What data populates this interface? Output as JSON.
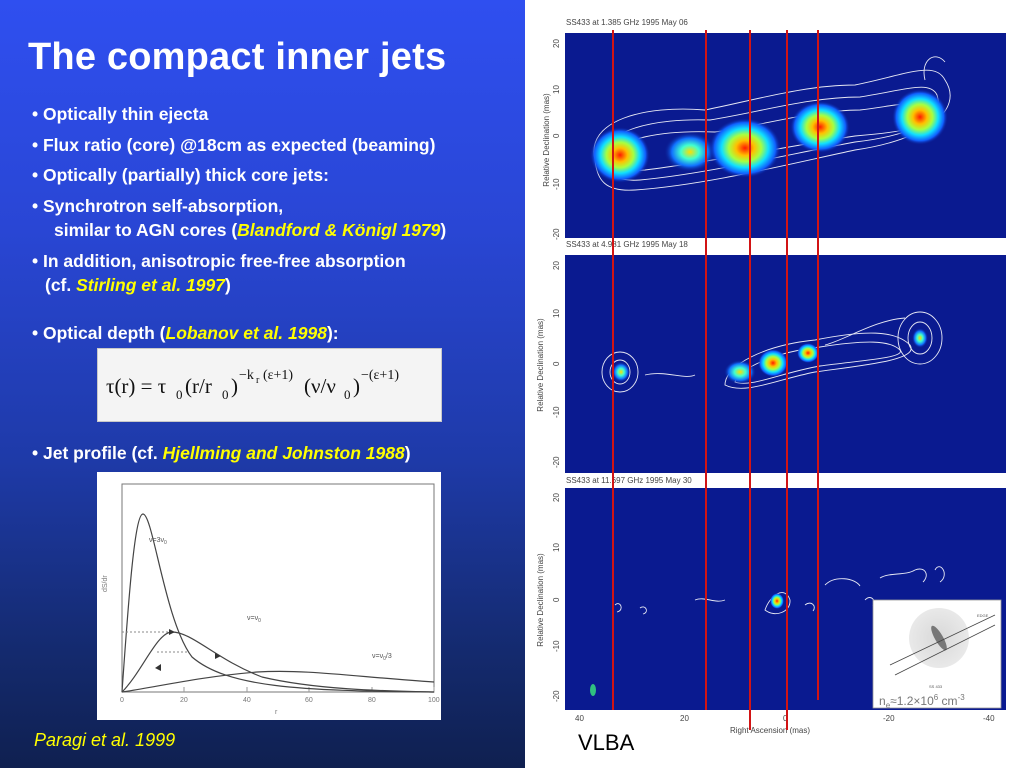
{
  "slide": {
    "title": "The compact inner jets",
    "bullets": {
      "b1": "• Optically thin ejecta",
      "b2": "• Flux ratio (core) @18cm as expected (beaming)",
      "b3": "• Optically (partially) thick core jets:",
      "b4": "• Synchrotron self-absorption,",
      "b5_pre": "similar to AGN cores (",
      "b5_ref": "Blandford & Königl 1979",
      "b5_post": ")",
      "b6": "• In addition, anisotropic free-free absorption",
      "b7_pre": "(cf. ",
      "b7_ref": "Stirling et al. 1997",
      "b7_post": ")",
      "b8_pre": "• Optical depth (",
      "b8_ref": "Lobanov et al. 1998",
      "b8_post": "):",
      "b9_pre": "• Jet profile (cf. ",
      "b9_ref": "Hjellming and Johnston 1988",
      "b9_post": ")"
    },
    "formula": {
      "tau_lhs": "τ(r) = τ",
      "sub0": "0",
      "r_part": "(r/r",
      "sub0b": "0",
      "close1": ")",
      "exp1": "−k",
      "exp1_sub": "r",
      "exp1_tail": "(ε+1)",
      "nu_part": "(ν/ν",
      "sub0c": "0",
      "close2": ")",
      "exp2": "−(ε+1)"
    },
    "plot": {
      "label_top": "ν=3ν",
      "label_top_sub": "0",
      "label_mid": "ν=ν",
      "label_mid_sub": "0",
      "label_right": "ν=ν",
      "label_right_sub": "0",
      "label_right_tail": "/3",
      "ylabel": "dS/dr",
      "xlabel": "r",
      "xticks": [
        "0",
        "20",
        "40",
        "60",
        "80",
        "100"
      ]
    },
    "credit": "Paragi et al. 1999",
    "vlba": "VLBA",
    "maps": {
      "m1_title": "SS433 at 1.385 GHz 1995 May 06",
      "m2_title": "SS433 at 4.981 GHz 1995 May 18",
      "m3_title": "SS433 at 11.697 GHz 1995 May 30",
      "ylabel1": "Relative Declination (mas)",
      "ylabel2": "Relative Declination (mas)",
      "ylabel3": "Relative Declination (mas)",
      "xlabel": "Right Ascension (mas)",
      "m1_yticks": [
        "20",
        "10",
        "0",
        "-10",
        "-20"
      ],
      "m2_yticks": [
        "20",
        "10",
        "0",
        "-10",
        "-20"
      ],
      "m3_yticks": [
        "20",
        "10",
        "0",
        "-10",
        "-20"
      ],
      "xticks": [
        "40",
        "20",
        "0",
        "-20",
        "-40"
      ],
      "density_label": "n",
      "density_sub": "e",
      "density_value": "≈1.2×10",
      "density_exp": "6",
      "density_unit": " cm",
      "density_unit_exp": "-3",
      "inset_label_top": "EDGE",
      "inset_label_bottom": "SS 433"
    }
  }
}
